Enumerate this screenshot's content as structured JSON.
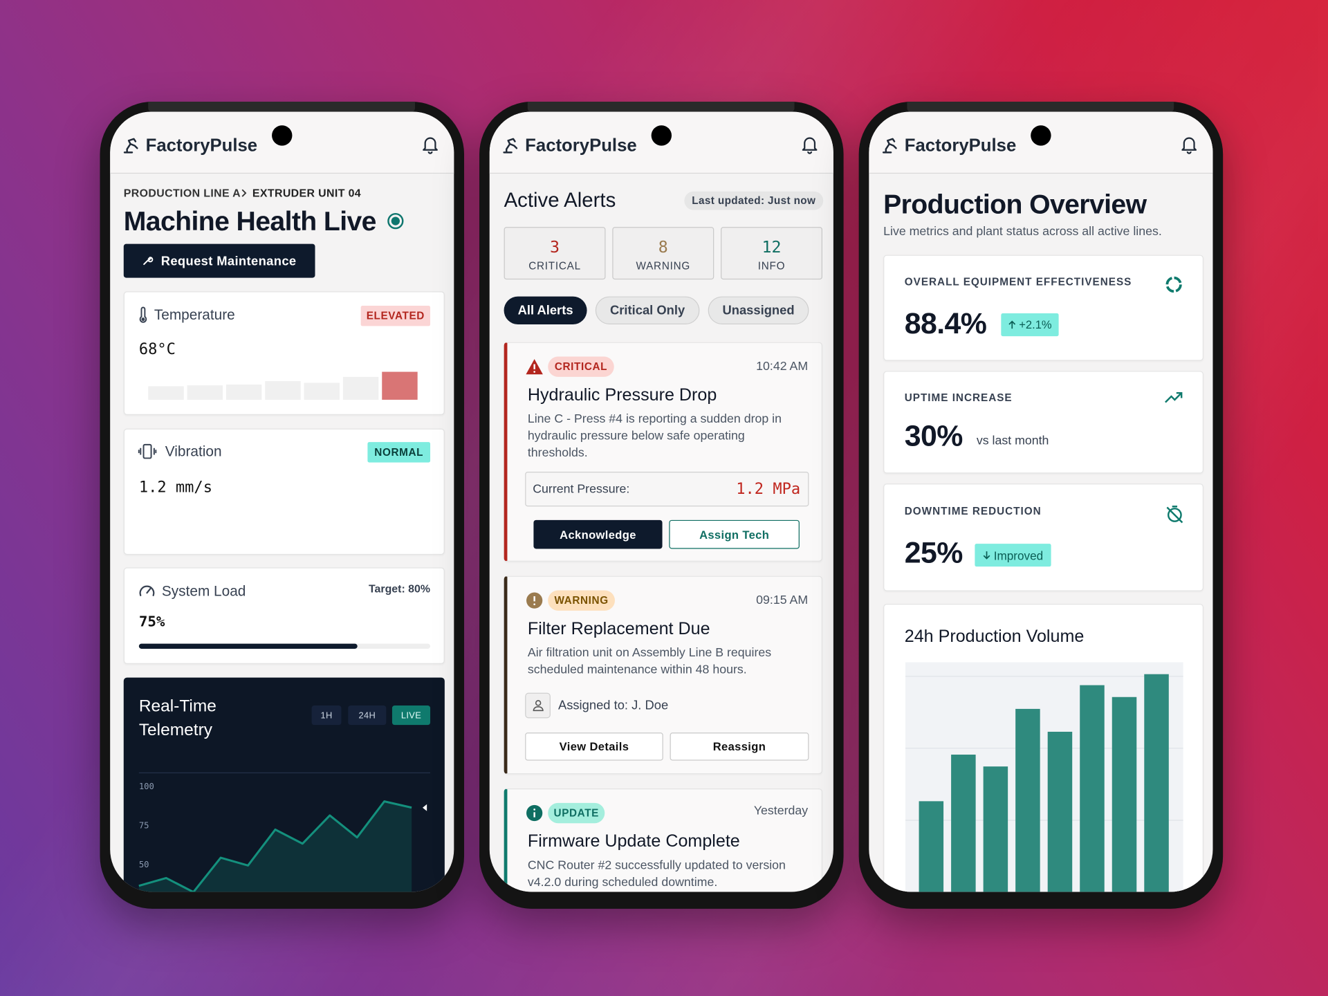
{
  "app_name": "FactoryPulse",
  "machine_health": {
    "breadcrumb": [
      "PRODUCTION LINE A",
      "EXTRUDER UNIT 04"
    ],
    "title": "Machine Health Live",
    "action": "Request Maintenance",
    "metrics": [
      {
        "label": "Temperature",
        "status": "ELEVATED",
        "reading": "68°C",
        "history": [
          16,
          17,
          18,
          22,
          20,
          27,
          33
        ]
      },
      {
        "label": "Vibration",
        "status": "NORMAL",
        "reading": "1.2 mm/s"
      },
      {
        "label": "System Load",
        "target": "Target: 80%",
        "value": 75,
        "value_label": "75%"
      }
    ],
    "telemetry": {
      "type": "line",
      "title": "Real-Time Telemetry",
      "ranges": [
        "1H",
        "24H",
        "LIVE"
      ],
      "values": [
        36,
        41,
        32,
        54,
        49,
        72,
        63,
        81,
        67,
        90,
        86
      ],
      "ylim": [
        30,
        108
      ],
      "yticks": [
        100,
        75,
        50
      ],
      "grid": false,
      "color": "#14907d"
    }
  },
  "alerts": {
    "title": "Active Alerts",
    "updated": "Last updated: Just now",
    "counts": [
      {
        "value": 3,
        "label": "CRITICAL"
      },
      {
        "value": 8,
        "label": "WARNING"
      },
      {
        "value": 12,
        "label": "INFO"
      }
    ],
    "filters": [
      "All Alerts",
      "Critical Only",
      "Unassigned"
    ],
    "items": [
      {
        "level": "CRITICAL",
        "time": "10:42 AM",
        "title": "Hydraulic Pressure Drop",
        "description": "Line C - Press #4 is reporting a sudden drop in hydraulic pressure below safe operating thresholds.",
        "reading_label": "Current Pressure:",
        "reading": "1.2 MPa",
        "actions": [
          "Acknowledge",
          "Assign Tech"
        ]
      },
      {
        "level": "WARNING",
        "time": "09:15 AM",
        "title": "Filter Replacement Due",
        "description": "Air filtration unit on Assembly Line B requires scheduled maintenance within 48 hours.",
        "assignee": "Assigned to: J. Doe",
        "actions": [
          "View Details",
          "Reassign"
        ]
      },
      {
        "level": "UPDATE",
        "time": "Yesterday",
        "title": "Firmware Update Complete",
        "description": "CNC Router #2 successfully updated to version v4.2.0 during scheduled downtime."
      }
    ]
  },
  "overview": {
    "title": "Production Overview",
    "subtitle": "Live metrics and plant status across all active lines.",
    "kpis": [
      {
        "label": "OVERALL EQUIPMENT EFFECTIVENESS",
        "value": "88.4%",
        "badge": "+2.1%"
      },
      {
        "label": "UPTIME INCREASE",
        "value": "30%",
        "note": "vs last month"
      },
      {
        "label": "DOWNTIME REDUCTION",
        "value": "25%",
        "badge": "Improved"
      }
    ],
    "production_volume": {
      "type": "bar",
      "title": "24h Production Volume",
      "values": [
        127,
        182,
        168,
        236,
        209,
        264,
        250,
        277
      ],
      "color": "#2f8a7e"
    }
  }
}
